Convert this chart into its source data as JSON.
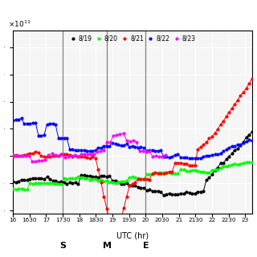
{
  "xlabel": "UTC (hr)",
  "series_labels": [
    "8/19",
    "8/20",
    "8/21",
    "8/22",
    "8/23"
  ],
  "colors": [
    "black",
    "#00ff00",
    "red",
    "blue",
    "magenta"
  ],
  "xlim": [
    16.0,
    23.2
  ],
  "ylim": [
    -0.05,
    3.3
  ],
  "vlines": [
    17.5,
    18.833,
    20.0
  ],
  "vline_labels": [
    "S",
    "M",
    "E"
  ],
  "xtick_positions": [
    16,
    16.5,
    17,
    17.5,
    18,
    18.5,
    19,
    19.5,
    20,
    20.5,
    21,
    21.5,
    22,
    22.5,
    23
  ],
  "xtick_labels": [
    "16",
    "1630",
    "17",
    "1730",
    "18",
    "1830",
    "19",
    "1930",
    "20",
    "2030",
    "21",
    "2130",
    "22",
    "2230",
    "23"
  ],
  "background_color": "#f5f5f5",
  "grid_color": "white",
  "legend_inside": true
}
